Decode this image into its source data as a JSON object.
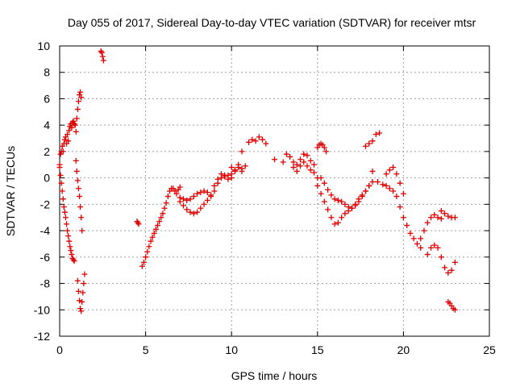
{
  "chart_data": {
    "type": "scatter",
    "title": "Day 055 of 2017, Sidereal Day-to-day VTEC variation (SDTVAR) for receiver mtsr",
    "xlabel": "GPS time / hours",
    "ylabel": "SDTVAR / TECUs",
    "xlim": [
      0,
      25
    ],
    "ylim": [
      -12,
      10
    ],
    "xticks": [
      0,
      5,
      10,
      15,
      20,
      25
    ],
    "yticks": [
      -12,
      -10,
      -8,
      -6,
      -4,
      -2,
      0,
      2,
      4,
      6,
      8,
      10
    ],
    "grid": true,
    "marker": "+",
    "color": "#e00000",
    "series": [
      {
        "name": "SDTVAR",
        "segments": [
          {
            "x": [
              0.0,
              0.05,
              0.1,
              0.15,
              0.2,
              0.25,
              0.3,
              0.35,
              0.4,
              0.45,
              0.5,
              0.55,
              0.6,
              0.65,
              0.7,
              0.75,
              0.8,
              0.85,
              0.9
            ],
            "y": [
              1.0,
              1.8,
              2.0,
              2.4,
              2.0,
              2.6,
              2.9,
              3.1,
              2.6,
              3.3,
              2.8,
              3.6,
              3.9,
              4.1,
              3.8,
              4.2,
              4.3,
              4.1,
              4.0
            ]
          },
          {
            "x": [
              0.0,
              0.05,
              0.1,
              0.15,
              0.2,
              0.25,
              0.3,
              0.35,
              0.4,
              0.45,
              0.5,
              0.55,
              0.6,
              0.65,
              0.7,
              0.75,
              0.8,
              0.85
            ],
            "y": [
              0.8,
              0.2,
              -0.4,
              -1.0,
              -1.6,
              -2.2,
              -2.6,
              -3.0,
              -3.5,
              -4.0,
              -4.4,
              -4.8,
              -5.2,
              -5.5,
              -5.8,
              -6.1,
              -6.2,
              -6.3
            ]
          },
          {
            "x": [
              0.95,
              1.0,
              1.05,
              1.1,
              1.15,
              1.2,
              1.25
            ],
            "y": [
              3.5,
              4.5,
              5.2,
              5.8,
              6.3,
              6.5,
              6.1
            ]
          },
          {
            "x": [
              0.95,
              1.0,
              1.05,
              1.1,
              1.15,
              1.2,
              1.25,
              1.3
            ],
            "y": [
              1.3,
              0.5,
              -0.2,
              -0.8,
              -1.4,
              -2.2,
              -3.0,
              -4.0
            ]
          },
          {
            "x": [
              1.05,
              1.1,
              1.15,
              1.2,
              1.25,
              1.3,
              1.35,
              1.4,
              1.45
            ],
            "y": [
              -7.8,
              -8.6,
              -9.3,
              -9.9,
              -10.1,
              -9.4,
              -8.7,
              -8.0,
              -7.3
            ]
          },
          {
            "x": [
              2.4,
              2.45,
              2.5,
              2.55
            ],
            "y": [
              9.6,
              9.5,
              9.2,
              8.9
            ]
          },
          {
            "x": [
              4.5,
              4.55,
              4.6
            ],
            "y": [
              -3.3,
              -3.4,
              -3.5
            ]
          },
          {
            "x": [
              4.8,
              4.9,
              5.0,
              5.1,
              5.2,
              5.3,
              5.4,
              5.5,
              5.6,
              5.7,
              5.8,
              5.9,
              6.0,
              6.1,
              6.2,
              6.3,
              6.4,
              6.5,
              6.6,
              6.7,
              6.8,
              6.9,
              7.0
            ],
            "y": [
              -6.7,
              -6.4,
              -6.0,
              -5.6,
              -5.2,
              -4.8,
              -4.5,
              -4.2,
              -3.9,
              -3.6,
              -3.3,
              -3.0,
              -2.7,
              -2.3,
              -1.9,
              -1.4,
              -1.0,
              -0.8,
              -0.8,
              -1.0,
              -1.2,
              -0.9,
              -0.7
            ]
          },
          {
            "x": [
              7.0,
              7.2,
              7.4,
              7.6,
              7.8,
              8.0,
              8.2,
              8.4,
              8.6,
              8.8
            ],
            "y": [
              -1.8,
              -2.1,
              -2.4,
              -2.6,
              -2.7,
              -2.6,
              -2.3,
              -2.0,
              -1.7,
              -1.3
            ]
          },
          {
            "x": [
              7.0,
              7.2,
              7.4,
              7.6,
              7.8,
              8.0,
              8.2,
              8.4,
              8.6,
              8.8,
              9.0,
              9.2,
              9.4,
              9.6,
              9.8,
              10.0
            ],
            "y": [
              -1.5,
              -1.6,
              -1.7,
              -1.6,
              -1.4,
              -1.2,
              -1.1,
              -1.0,
              -1.1,
              -1.4,
              -1.0,
              -0.4,
              0.0,
              0.1,
              0.2,
              0.0
            ]
          },
          {
            "x": [
              9.0,
              9.2,
              9.4,
              9.6,
              9.8,
              10.0,
              10.2,
              10.4,
              10.6
            ],
            "y": [
              -0.6,
              -0.1,
              0.3,
              0.2,
              -0.1,
              0.3,
              0.6,
              0.8,
              0.5
            ]
          },
          {
            "x": [
              10.0,
              10.2,
              10.4,
              10.6,
              10.8
            ],
            "y": [
              0.8,
              0.5,
              1.0,
              0.7,
              0.9
            ]
          },
          {
            "x": [
              11.0,
              11.2,
              11.4,
              11.6,
              11.8,
              12.0
            ],
            "y": [
              2.7,
              2.9,
              2.8,
              3.1,
              2.9,
              2.6
            ]
          },
          {
            "x": [
              10.6,
              12.5,
              13.0
            ],
            "y": [
              2.0,
              1.4,
              1.2
            ]
          },
          {
            "x": [
              13.2,
              13.4,
              13.6,
              13.8,
              14.0,
              14.2,
              14.4,
              14.6,
              14.8
            ],
            "y": [
              1.8,
              1.6,
              1.2,
              1.0,
              1.4,
              1.8,
              1.7,
              1.3,
              1.0
            ]
          },
          {
            "x": [
              13.6,
              13.8,
              14.0,
              14.2,
              14.4,
              14.6,
              14.8,
              15.0
            ],
            "y": [
              0.8,
              0.5,
              0.9,
              1.2,
              0.9,
              0.6,
              0.4,
              0.0
            ]
          },
          {
            "x": [
              15.0,
              15.1,
              15.2,
              15.3,
              15.4,
              15.5
            ],
            "y": [
              2.3,
              2.5,
              2.6,
              2.5,
              2.3,
              2.0
            ]
          },
          {
            "x": [
              15.0,
              15.2,
              15.4,
              15.6,
              15.8,
              16.0,
              16.2,
              16.4,
              16.6,
              16.8,
              17.0,
              17.2,
              17.4,
              17.6,
              17.8,
              18.0,
              18.2
            ],
            "y": [
              -0.6,
              -1.2,
              -1.8,
              -2.4,
              -3.0,
              -3.5,
              -3.4,
              -3.0,
              -2.7,
              -2.5,
              -2.3,
              -2.0,
              -1.6,
              -1.3,
              -1.0,
              -0.6,
              -0.3
            ]
          },
          {
            "x": [
              15.2,
              15.4,
              15.6,
              15.8,
              16.0,
              16.2,
              16.4,
              16.6,
              16.8,
              17.0,
              17.2,
              17.4,
              17.6,
              17.8,
              18.0
            ],
            "y": [
              0.0,
              -0.4,
              -0.9,
              -1.3,
              -1.6,
              -1.7,
              -1.8,
              -2.0,
              -2.2,
              -2.3,
              -2.1,
              -1.8,
              -1.4,
              -1.0,
              -0.6
            ]
          },
          {
            "x": [
              17.8,
              18.0,
              18.2,
              18.4,
              18.6
            ],
            "y": [
              2.4,
              2.6,
              2.8,
              3.3,
              3.4
            ]
          },
          {
            "x": [
              18.2,
              18.5,
              18.8,
              19.0,
              19.2,
              19.4,
              19.6,
              19.8,
              20.0,
              20.2,
              20.4,
              20.6,
              20.8,
              21.0
            ],
            "y": [
              0.5,
              -0.3,
              -0.5,
              -0.6,
              -0.8,
              -1.0,
              -1.4,
              -2.2,
              -3.0,
              -3.6,
              -4.2,
              -4.6,
              -5.0,
              -5.3
            ]
          },
          {
            "x": [
              19.0,
              19.2,
              19.4,
              19.6,
              19.8,
              20.0
            ],
            "y": [
              0.3,
              0.6,
              0.8,
              0.3,
              -0.4,
              -1.2
            ]
          },
          {
            "x": [
              21.0,
              21.2,
              21.4,
              21.6,
              21.8,
              22.0,
              22.2
            ],
            "y": [
              -4.6,
              -4.0,
              -3.4,
              -3.0,
              -2.8,
              -3.0,
              -3.1
            ]
          },
          {
            "x": [
              21.4,
              21.6,
              21.8,
              22.0,
              22.2,
              22.4,
              22.6,
              22.8,
              23.0
            ],
            "y": [
              -5.8,
              -5.3,
              -5.1,
              -5.3,
              -6.0,
              -6.8,
              -7.2,
              -7.0,
              -6.4
            ]
          },
          {
            "x": [
              22.2,
              22.4,
              22.6,
              22.8,
              23.0
            ],
            "y": [
              -2.5,
              -2.7,
              -2.9,
              -3.0,
              -3.0
            ]
          },
          {
            "x": [
              22.6,
              22.7,
              22.8,
              22.9,
              23.0
            ],
            "y": [
              -9.4,
              -9.5,
              -9.7,
              -9.9,
              -10.0
            ]
          }
        ]
      }
    ]
  }
}
